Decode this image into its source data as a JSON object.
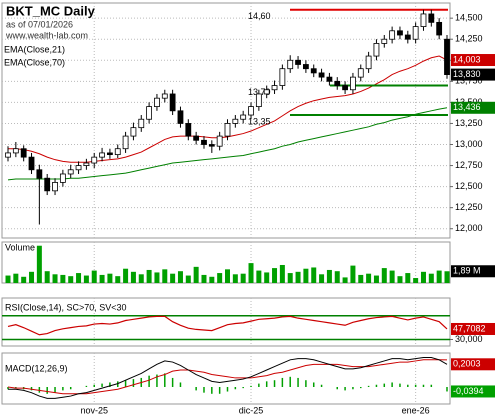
{
  "chart_data": [
    {
      "type": "candlestick",
      "title": "BKT_MC Daily",
      "subtitle": "as of 07/01/2026",
      "source": "www.wealth-lab.com",
      "categories": [
        null,
        null,
        null,
        null,
        null,
        null,
        null,
        null,
        null,
        null,
        null,
        "nov-25",
        null,
        null,
        null,
        null,
        null,
        null,
        null,
        null,
        null,
        null,
        null,
        null,
        null,
        null,
        null,
        null,
        null,
        null,
        null,
        "dic-25",
        null,
        null,
        null,
        null,
        null,
        null,
        null,
        null,
        null,
        null,
        null,
        null,
        null,
        null,
        null,
        null,
        null,
        null,
        null,
        null,
        "ene-26",
        null,
        null,
        null,
        null
      ],
      "open": [
        12.85,
        12.9,
        12.95,
        12.85,
        12.7,
        12.6,
        12.45,
        12.55,
        12.65,
        12.7,
        12.75,
        12.78,
        12.85,
        12.9,
        12.88,
        12.95,
        13.1,
        13.2,
        13.3,
        13.45,
        13.55,
        13.6,
        13.4,
        13.25,
        13.1,
        13.05,
        13.0,
        12.98,
        13.1,
        13.25,
        13.3,
        13.35,
        13.45,
        13.6,
        13.65,
        13.7,
        13.9,
        14.0,
        13.95,
        13.9,
        13.85,
        13.8,
        13.75,
        13.7,
        13.65,
        13.8,
        13.9,
        14.05,
        14.2,
        14.25,
        14.35,
        14.3,
        14.25,
        14.4,
        14.55,
        14.45,
        14.25
      ],
      "high": [
        12.98,
        13.03,
        12.99,
        12.9,
        12.76,
        12.65,
        12.6,
        12.7,
        12.76,
        12.8,
        12.83,
        12.9,
        12.96,
        12.95,
        13.0,
        13.15,
        13.26,
        13.35,
        13.5,
        13.6,
        13.65,
        13.65,
        13.45,
        13.3,
        13.15,
        13.1,
        13.05,
        13.15,
        13.3,
        13.35,
        13.4,
        13.5,
        13.65,
        13.7,
        13.76,
        13.95,
        14.06,
        14.05,
        14.0,
        13.95,
        13.9,
        13.85,
        13.8,
        13.75,
        13.85,
        13.95,
        14.1,
        14.25,
        14.3,
        14.4,
        14.4,
        14.35,
        14.45,
        14.6,
        14.6,
        14.5,
        14.3
      ],
      "low": [
        12.8,
        12.85,
        12.8,
        12.65,
        12.05,
        12.4,
        12.4,
        12.5,
        12.6,
        12.65,
        12.7,
        12.72,
        12.8,
        12.83,
        12.84,
        12.9,
        13.05,
        13.15,
        13.25,
        13.4,
        13.5,
        13.35,
        13.2,
        13.05,
        13.0,
        12.95,
        12.9,
        12.93,
        13.05,
        13.2,
        13.25,
        13.3,
        13.4,
        13.55,
        13.6,
        13.65,
        13.85,
        13.9,
        13.85,
        13.8,
        13.75,
        13.7,
        13.65,
        13.6,
        13.6,
        13.75,
        13.85,
        14.0,
        14.15,
        14.2,
        14.25,
        14.2,
        14.2,
        14.35,
        14.4,
        14.25,
        13.78
      ],
      "close": [
        12.9,
        12.95,
        12.85,
        12.7,
        12.6,
        12.45,
        12.55,
        12.65,
        12.7,
        12.75,
        12.78,
        12.85,
        12.9,
        12.88,
        12.95,
        13.1,
        13.2,
        13.3,
        13.45,
        13.55,
        13.6,
        13.4,
        13.25,
        13.1,
        13.05,
        13.0,
        12.98,
        13.1,
        13.25,
        13.3,
        13.35,
        13.45,
        13.6,
        13.65,
        13.7,
        13.9,
        14.0,
        13.95,
        13.9,
        13.85,
        13.8,
        13.75,
        13.7,
        13.65,
        13.8,
        13.9,
        14.05,
        14.2,
        14.25,
        14.35,
        14.3,
        14.25,
        14.4,
        14.55,
        14.45,
        14.3,
        13.83
      ],
      "close_label": "13,830",
      "series": [
        {
          "name": "EMA(Close,21)",
          "color": "#cc0000",
          "value_label": "14,003",
          "values": [
            12.95,
            12.95,
            12.94,
            12.92,
            12.89,
            12.85,
            12.82,
            12.8,
            12.79,
            12.79,
            12.79,
            12.8,
            12.81,
            12.82,
            12.83,
            12.85,
            12.88,
            12.91,
            12.96,
            13.01,
            13.06,
            13.09,
            13.1,
            13.1,
            13.1,
            13.09,
            13.08,
            13.08,
            13.09,
            13.11,
            13.13,
            13.16,
            13.2,
            13.24,
            13.28,
            13.34,
            13.4,
            13.45,
            13.49,
            13.52,
            13.54,
            13.56,
            13.57,
            13.58,
            13.6,
            13.63,
            13.67,
            13.72,
            13.77,
            13.83,
            13.87,
            13.9,
            13.94,
            13.99,
            14.03,
            14.05,
            14.003
          ]
        },
        {
          "name": "EMA(Close,70)",
          "color": "#008000",
          "value_label": "13,436",
          "values": [
            12.58,
            12.59,
            12.59,
            12.59,
            12.59,
            12.59,
            12.59,
            12.59,
            12.6,
            12.6,
            12.61,
            12.62,
            12.63,
            12.64,
            12.65,
            12.66,
            12.68,
            12.7,
            12.72,
            12.74,
            12.76,
            12.78,
            12.79,
            12.8,
            12.81,
            12.82,
            12.83,
            12.84,
            12.85,
            12.86,
            12.87,
            12.89,
            12.91,
            12.93,
            12.95,
            12.98,
            13.0,
            13.03,
            13.05,
            13.07,
            13.09,
            13.11,
            13.13,
            13.15,
            13.17,
            13.19,
            13.21,
            13.24,
            13.26,
            13.29,
            13.31,
            13.33,
            13.36,
            13.38,
            13.4,
            13.42,
            13.436
          ]
        }
      ],
      "annotations": [
        {
          "value": 14.6,
          "label": "14,60",
          "color": "#e00000"
        },
        {
          "value": 13.7,
          "label": "13,70",
          "color": "#008000"
        },
        {
          "value": 13.35,
          "label": "13,35",
          "color": "#008000"
        }
      ],
      "ylim": [
        11.89,
        14.68
      ],
      "yticks": [
        {
          "value": 12,
          "label": "12,000"
        },
        {
          "value": 12.25,
          "label": "12,250"
        },
        {
          "value": 12.5,
          "label": "12,500"
        },
        {
          "value": 12.75,
          "label": "12,750"
        },
        {
          "value": 13,
          "label": "13,000"
        },
        {
          "value": 13.25,
          "label": "13,250"
        },
        {
          "value": 13.5,
          "label": "13,500"
        },
        {
          "value": 13.75,
          "label": "13,750"
        },
        {
          "value": 14,
          "label": "14,000"
        },
        {
          "value": 14.25,
          "label": "14,250"
        },
        {
          "value": 14.5,
          "label": "14,500"
        }
      ],
      "grid": true
    },
    {
      "type": "bar",
      "title": "Volume",
      "color": "#00a000",
      "value_label": "1,89 M",
      "values": [
        1.2,
        1.5,
        1.0,
        1.8,
        6.0,
        1.9,
        1.4,
        1.3,
        1.1,
        1.6,
        1.2,
        2.0,
        1.3,
        1.5,
        1.1,
        2.3,
        1.8,
        1.4,
        2.1,
        1.7,
        2.2,
        1.5,
        1.9,
        1.2,
        2.6,
        1.3,
        1.0,
        1.6,
        2.2,
        1.4,
        1.5,
        3.2,
        2.0,
        1.7,
        2.4,
        2.9,
        1.6,
        1.8,
        2.3,
        2.5,
        1.4,
        2.1,
        1.9,
        0.9,
        2.8,
        1.3,
        1.5,
        1.2,
        2.4,
        2.0,
        1.1,
        1.6,
        0.8,
        1.8,
        1.5,
        2.0,
        1.89
      ],
      "ylim": [
        0,
        6.6
      ]
    },
    {
      "type": "line",
      "title": "RSI(Close,14), SC>70, SV<30",
      "color": "#cc0000",
      "value_label": "47,7082",
      "values": [
        52,
        55,
        50,
        44,
        38,
        40,
        45,
        48,
        50,
        52,
        53,
        56,
        57,
        56,
        58,
        62,
        64,
        66,
        68,
        69,
        69,
        60,
        54,
        49,
        47,
        46,
        45,
        50,
        55,
        57,
        58,
        61,
        64,
        65,
        66,
        68,
        69,
        66,
        64,
        62,
        60,
        58,
        56,
        54,
        59,
        62,
        65,
        67,
        68,
        69,
        66,
        63,
        66,
        68,
        64,
        60,
        47.7082
      ],
      "thresholds": [
        70,
        30
      ],
      "threshold_color": "#008000",
      "ylim": [
        19,
        100
      ],
      "yticks": [
        {
          "value": 30,
          "label": "30,000"
        }
      ]
    },
    {
      "type": "macd",
      "title": "MACD(12,26,9)",
      "macd": [
        -0.02,
        -0.02,
        -0.03,
        -0.05,
        -0.08,
        -0.1,
        -0.1,
        -0.09,
        -0.08,
        -0.06,
        -0.05,
        -0.03,
        -0.01,
        0.01,
        0.03,
        0.06,
        0.09,
        0.12,
        0.16,
        0.2,
        0.23,
        0.22,
        0.19,
        0.15,
        0.11,
        0.08,
        0.05,
        0.04,
        0.05,
        0.06,
        0.07,
        0.09,
        0.12,
        0.15,
        0.18,
        0.21,
        0.24,
        0.25,
        0.25,
        0.24,
        0.22,
        0.2,
        0.18,
        0.16,
        0.16,
        0.17,
        0.19,
        0.21,
        0.23,
        0.25,
        0.25,
        0.24,
        0.25,
        0.26,
        0.26,
        0.24,
        0.2003
      ],
      "signal": [
        0.0,
        -0.01,
        -0.01,
        -0.02,
        -0.03,
        -0.04,
        -0.05,
        -0.06,
        -0.06,
        -0.06,
        -0.06,
        -0.05,
        -0.04,
        -0.03,
        -0.02,
        0.0,
        0.02,
        0.04,
        0.06,
        0.09,
        0.11,
        0.14,
        0.15,
        0.15,
        0.14,
        0.13,
        0.11,
        0.1,
        0.09,
        0.08,
        0.08,
        0.08,
        0.09,
        0.1,
        0.12,
        0.13,
        0.15,
        0.17,
        0.19,
        0.2,
        0.2,
        0.2,
        0.2,
        0.19,
        0.18,
        0.18,
        0.18,
        0.19,
        0.2,
        0.21,
        0.22,
        0.22,
        0.23,
        0.24,
        0.24,
        0.24,
        0.2397
      ],
      "histogram": [
        -0.02,
        -0.01,
        -0.02,
        -0.03,
        -0.05,
        -0.06,
        -0.05,
        -0.03,
        -0.02,
        0,
        0.01,
        0.02,
        0.03,
        0.04,
        0.05,
        0.06,
        0.07,
        0.08,
        0.1,
        0.11,
        0.12,
        0.08,
        0.04,
        0,
        -0.03,
        -0.05,
        -0.06,
        -0.06,
        -0.04,
        -0.02,
        -0.01,
        0.01,
        0.03,
        0.05,
        0.06,
        0.08,
        0.09,
        0.08,
        0.06,
        0.04,
        0.02,
        0,
        -0.02,
        -0.03,
        -0.02,
        -0.01,
        0.01,
        0.02,
        0.03,
        0.04,
        0.03,
        0.02,
        0.02,
        0.02,
        0.02,
        0,
        -0.0394
      ],
      "macd_color": "#000000",
      "signal_color": "#cc0000",
      "histogram_color": "#00a000",
      "macd_label": "0,2003",
      "histogram_label": "-0,0394",
      "ylim": [
        -0.15,
        0.3
      ]
    }
  ]
}
